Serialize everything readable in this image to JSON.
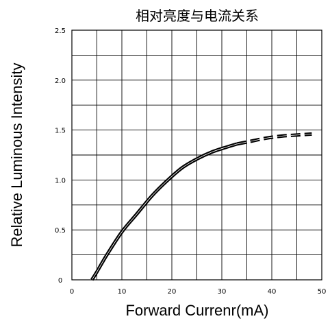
{
  "chart_data": {
    "type": "line",
    "title": "相对亮度与电流关系",
    "xlabel": "Forward Currenr(mA)",
    "ylabel": "Relative Luminous Intensity",
    "xlim": [
      0,
      50
    ],
    "ylim": [
      0,
      2.5
    ],
    "x_ticks": [
      "0",
      "10",
      "20",
      "30",
      "40",
      "50"
    ],
    "y_ticks": [
      "0",
      "0.5",
      "1.0",
      "1.5",
      "2.0",
      "2.5"
    ],
    "grid": true,
    "series": [
      {
        "style": "solid",
        "x": [
          4,
          5,
          7,
          10,
          13,
          16,
          19,
          22,
          25,
          28,
          31,
          33
        ],
        "y": [
          0.0,
          0.08,
          0.25,
          0.48,
          0.66,
          0.84,
          0.99,
          1.12,
          1.21,
          1.28,
          1.33,
          1.36
        ]
      },
      {
        "style": "dashed",
        "x": [
          33,
          36,
          39,
          42,
          45,
          48
        ],
        "y": [
          1.36,
          1.39,
          1.42,
          1.44,
          1.45,
          1.46
        ]
      }
    ]
  }
}
